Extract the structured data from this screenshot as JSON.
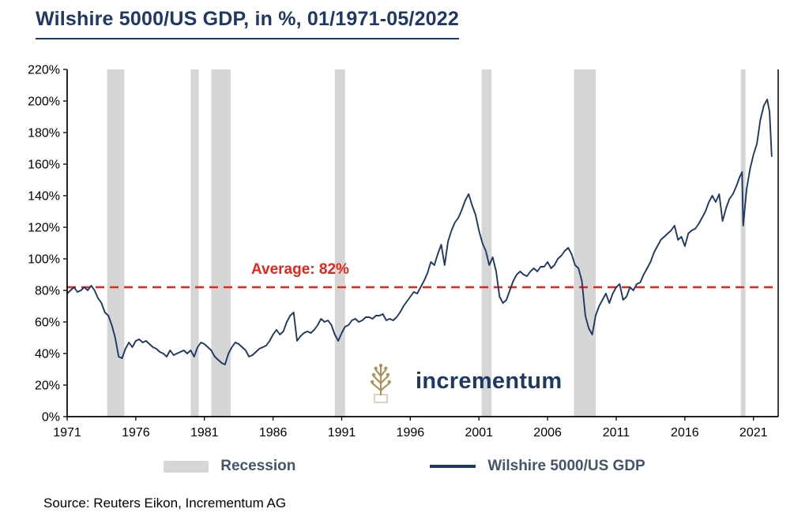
{
  "title": "Wilshire 5000/US GDP, in %, 01/1971-05/2022",
  "average_label": "Average: 82%",
  "logo_text": "incrementum",
  "source": "Source: Reuters Eikon, Incrementum AG",
  "legend": {
    "recession_label": "Recession",
    "series_label": "Wilshire 5000/US GDP"
  },
  "colors": {
    "title": "#1F3864",
    "line": "#1F3864",
    "recession": "#D6D6D6",
    "average": "#E8251B",
    "legend_text": "#44546A",
    "logo_gold": "#A9935A",
    "logo_text": "#203864",
    "axis": "#000000"
  },
  "chart_data": {
    "type": "line",
    "title": "Wilshire 5000/US GDP, in %, 01/1971-05/2022",
    "xlabel": "",
    "ylabel": "",
    "xlim": [
      1971,
      2022.8
    ],
    "ylim": [
      0,
      220
    ],
    "x_ticks": [
      1971,
      1976,
      1981,
      1986,
      1991,
      1996,
      2001,
      2006,
      2011,
      2016,
      2021
    ],
    "y_ticks": [
      0,
      20,
      40,
      60,
      80,
      100,
      120,
      140,
      160,
      180,
      200,
      220
    ],
    "y_tick_suffix": "%",
    "grid": false,
    "legend_position": "bottom",
    "average": 82,
    "recession_bands": [
      [
        1973.92,
        1975.17
      ],
      [
        1980.0,
        1980.58
      ],
      [
        1981.5,
        1982.92
      ],
      [
        1990.5,
        1991.25
      ],
      [
        2001.2,
        2001.92
      ],
      [
        2007.92,
        2009.5
      ],
      [
        2020.08,
        2020.42
      ]
    ],
    "series": [
      {
        "name": "Wilshire 5000/US GDP",
        "points": [
          [
            1971.0,
            78
          ],
          [
            1971.25,
            80
          ],
          [
            1971.5,
            82
          ],
          [
            1971.75,
            79
          ],
          [
            1972.0,
            80
          ],
          [
            1972.25,
            82
          ],
          [
            1972.5,
            80
          ],
          [
            1972.75,
            83
          ],
          [
            1973.0,
            80
          ],
          [
            1973.25,
            75
          ],
          [
            1973.5,
            72
          ],
          [
            1973.75,
            66
          ],
          [
            1974.0,
            64
          ],
          [
            1974.25,
            58
          ],
          [
            1974.5,
            50
          ],
          [
            1974.75,
            38
          ],
          [
            1975.0,
            37
          ],
          [
            1975.25,
            43
          ],
          [
            1975.5,
            47
          ],
          [
            1975.75,
            44
          ],
          [
            1976.0,
            48
          ],
          [
            1976.25,
            49
          ],
          [
            1976.5,
            47
          ],
          [
            1976.75,
            48
          ],
          [
            1977.0,
            46
          ],
          [
            1977.25,
            44
          ],
          [
            1977.5,
            43
          ],
          [
            1977.75,
            41
          ],
          [
            1978.0,
            40
          ],
          [
            1978.25,
            38
          ],
          [
            1978.5,
            42
          ],
          [
            1978.75,
            39
          ],
          [
            1979.0,
            40
          ],
          [
            1979.25,
            41
          ],
          [
            1979.5,
            42
          ],
          [
            1979.75,
            40
          ],
          [
            1980.0,
            42
          ],
          [
            1980.25,
            38
          ],
          [
            1980.5,
            44
          ],
          [
            1980.75,
            47
          ],
          [
            1981.0,
            46
          ],
          [
            1981.25,
            44
          ],
          [
            1981.5,
            42
          ],
          [
            1981.75,
            38
          ],
          [
            1982.0,
            36
          ],
          [
            1982.25,
            34
          ],
          [
            1982.5,
            33
          ],
          [
            1982.75,
            40
          ],
          [
            1983.0,
            44
          ],
          [
            1983.25,
            47
          ],
          [
            1983.5,
            46
          ],
          [
            1983.75,
            44
          ],
          [
            1984.0,
            42
          ],
          [
            1984.25,
            38
          ],
          [
            1984.5,
            39
          ],
          [
            1984.75,
            41
          ],
          [
            1985.0,
            43
          ],
          [
            1985.25,
            44
          ],
          [
            1985.5,
            45
          ],
          [
            1985.75,
            48
          ],
          [
            1986.0,
            52
          ],
          [
            1986.25,
            55
          ],
          [
            1986.5,
            52
          ],
          [
            1986.75,
            54
          ],
          [
            1987.0,
            60
          ],
          [
            1987.25,
            64
          ],
          [
            1987.5,
            66
          ],
          [
            1987.75,
            48
          ],
          [
            1988.0,
            51
          ],
          [
            1988.25,
            53
          ],
          [
            1988.5,
            54
          ],
          [
            1988.75,
            53
          ],
          [
            1989.0,
            55
          ],
          [
            1989.25,
            58
          ],
          [
            1989.5,
            62
          ],
          [
            1989.75,
            60
          ],
          [
            1990.0,
            61
          ],
          [
            1990.25,
            58
          ],
          [
            1990.5,
            52
          ],
          [
            1990.75,
            48
          ],
          [
            1991.0,
            53
          ],
          [
            1991.25,
            57
          ],
          [
            1991.5,
            58
          ],
          [
            1991.75,
            61
          ],
          [
            1992.0,
            62
          ],
          [
            1992.25,
            60
          ],
          [
            1992.5,
            61
          ],
          [
            1992.75,
            63
          ],
          [
            1993.0,
            63
          ],
          [
            1993.25,
            62
          ],
          [
            1993.5,
            64
          ],
          [
            1993.75,
            64
          ],
          [
            1994.0,
            65
          ],
          [
            1994.25,
            61
          ],
          [
            1994.5,
            62
          ],
          [
            1994.75,
            61
          ],
          [
            1995.0,
            63
          ],
          [
            1995.25,
            66
          ],
          [
            1995.5,
            70
          ],
          [
            1995.75,
            73
          ],
          [
            1996.0,
            76
          ],
          [
            1996.25,
            79
          ],
          [
            1996.5,
            78
          ],
          [
            1996.75,
            82
          ],
          [
            1997.0,
            86
          ],
          [
            1997.25,
            91
          ],
          [
            1997.5,
            98
          ],
          [
            1997.75,
            96
          ],
          [
            1998.0,
            103
          ],
          [
            1998.25,
            109
          ],
          [
            1998.5,
            96
          ],
          [
            1998.75,
            111
          ],
          [
            1999.0,
            118
          ],
          [
            1999.25,
            123
          ],
          [
            1999.5,
            126
          ],
          [
            1999.75,
            131
          ],
          [
            2000.0,
            137
          ],
          [
            2000.25,
            141
          ],
          [
            2000.5,
            134
          ],
          [
            2000.75,
            128
          ],
          [
            2001.0,
            118
          ],
          [
            2001.25,
            110
          ],
          [
            2001.5,
            105
          ],
          [
            2001.75,
            96
          ],
          [
            2002.0,
            101
          ],
          [
            2002.25,
            92
          ],
          [
            2002.5,
            76
          ],
          [
            2002.75,
            72
          ],
          [
            2003.0,
            74
          ],
          [
            2003.25,
            80
          ],
          [
            2003.5,
            86
          ],
          [
            2003.75,
            90
          ],
          [
            2004.0,
            92
          ],
          [
            2004.25,
            90
          ],
          [
            2004.5,
            89
          ],
          [
            2004.75,
            92
          ],
          [
            2005.0,
            94
          ],
          [
            2005.25,
            92
          ],
          [
            2005.5,
            95
          ],
          [
            2005.75,
            95
          ],
          [
            2006.0,
            98
          ],
          [
            2006.25,
            94
          ],
          [
            2006.5,
            96
          ],
          [
            2006.75,
            100
          ],
          [
            2007.0,
            102
          ],
          [
            2007.25,
            105
          ],
          [
            2007.5,
            107
          ],
          [
            2007.75,
            103
          ],
          [
            2008.0,
            96
          ],
          [
            2008.25,
            94
          ],
          [
            2008.5,
            86
          ],
          [
            2008.75,
            64
          ],
          [
            2009.0,
            56
          ],
          [
            2009.25,
            52
          ],
          [
            2009.5,
            64
          ],
          [
            2009.75,
            70
          ],
          [
            2010.0,
            74
          ],
          [
            2010.25,
            78
          ],
          [
            2010.5,
            72
          ],
          [
            2010.75,
            78
          ],
          [
            2011.0,
            82
          ],
          [
            2011.25,
            84
          ],
          [
            2011.5,
            74
          ],
          [
            2011.75,
            76
          ],
          [
            2012.0,
            82
          ],
          [
            2012.25,
            80
          ],
          [
            2012.5,
            84
          ],
          [
            2012.75,
            85
          ],
          [
            2013.0,
            90
          ],
          [
            2013.25,
            94
          ],
          [
            2013.5,
            98
          ],
          [
            2013.75,
            104
          ],
          [
            2014.0,
            108
          ],
          [
            2014.25,
            112
          ],
          [
            2014.5,
            114
          ],
          [
            2014.75,
            116
          ],
          [
            2015.0,
            118
          ],
          [
            2015.25,
            121
          ],
          [
            2015.5,
            112
          ],
          [
            2015.75,
            114
          ],
          [
            2016.0,
            108
          ],
          [
            2016.25,
            116
          ],
          [
            2016.5,
            118
          ],
          [
            2016.75,
            119
          ],
          [
            2017.0,
            122
          ],
          [
            2017.25,
            126
          ],
          [
            2017.5,
            130
          ],
          [
            2017.75,
            136
          ],
          [
            2018.0,
            140
          ],
          [
            2018.25,
            136
          ],
          [
            2018.5,
            141
          ],
          [
            2018.75,
            124
          ],
          [
            2019.0,
            132
          ],
          [
            2019.25,
            138
          ],
          [
            2019.5,
            141
          ],
          [
            2019.75,
            146
          ],
          [
            2020.0,
            152
          ],
          [
            2020.17,
            155
          ],
          [
            2020.25,
            121
          ],
          [
            2020.5,
            144
          ],
          [
            2020.75,
            157
          ],
          [
            2021.0,
            166
          ],
          [
            2021.25,
            173
          ],
          [
            2021.5,
            188
          ],
          [
            2021.75,
            197
          ],
          [
            2022.0,
            201
          ],
          [
            2022.17,
            193
          ],
          [
            2022.33,
            165
          ]
        ]
      }
    ]
  }
}
